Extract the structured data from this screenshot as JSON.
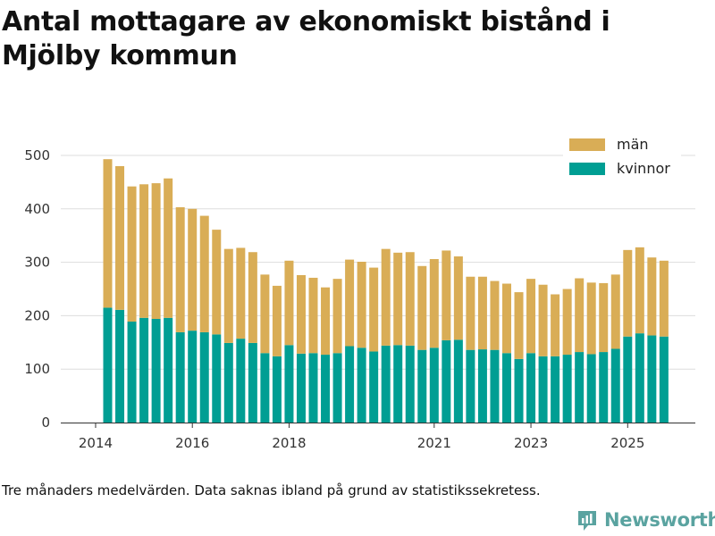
{
  "title": "Antal mottagare av ekonomiskt bistånd i Mjölby kommun",
  "footnote": "Tre månaders medelvärden. Data saknas ibland på grund av statistikssekretess.",
  "brand": {
    "name": "Newsworthy",
    "icon": "newsworthy-logo-icon"
  },
  "colors": {
    "man": "#d9ad56",
    "kvinnor": "#009e93",
    "grid": "#dddddd",
    "axis": "#333333"
  },
  "chart_data": {
    "type": "bar",
    "stacked": true,
    "title": "Antal mottagare av ekonomiskt bistånd i Mjölby kommun",
    "xlabel": "",
    "ylabel": "",
    "ylim": [
      0,
      500
    ],
    "yticks": [
      0,
      100,
      200,
      300,
      400,
      500
    ],
    "xticks": [
      {
        "label": "2014",
        "pos": -1
      },
      {
        "label": "2016",
        "pos": 7
      },
      {
        "label": "2018",
        "pos": 15
      },
      {
        "label": "2021",
        "pos": 27
      },
      {
        "label": "2023",
        "pos": 35
      },
      {
        "label": "2025",
        "pos": 43
      }
    ],
    "legend": {
      "placement": "top-right",
      "entries": [
        "män",
        "kvinnor"
      ]
    },
    "series": [
      {
        "name": "kvinnor",
        "values": [
          215,
          211,
          189,
          196,
          194,
          196,
          169,
          172,
          169,
          165,
          149,
          157,
          149,
          130,
          124,
          145,
          129,
          130,
          127,
          130,
          143,
          140,
          133,
          144,
          145,
          144,
          136,
          140,
          154,
          155,
          136,
          137,
          136,
          130,
          119,
          130,
          124,
          124,
          127,
          132,
          128,
          132,
          138,
          161,
          167,
          163,
          161
        ]
      },
      {
        "name": "män",
        "values": [
          278,
          269,
          253,
          250,
          254,
          261,
          234,
          228,
          218,
          196,
          176,
          170,
          170,
          147,
          132,
          158,
          147,
          141,
          126,
          139,
          162,
          161,
          157,
          181,
          173,
          175,
          157,
          166,
          168,
          156,
          137,
          136,
          129,
          130,
          125,
          139,
          134,
          116,
          123,
          138,
          134,
          129,
          139,
          162,
          161,
          146,
          142
        ]
      }
    ]
  }
}
